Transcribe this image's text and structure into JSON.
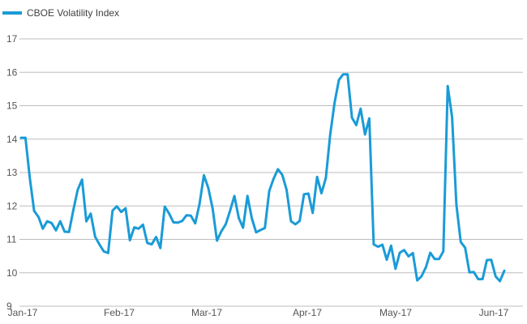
{
  "chart_data": {
    "type": "line",
    "legend": {
      "position": "top-left",
      "entries": [
        "CBOE Volatility Index"
      ]
    },
    "x_labels": [
      "Jan-17",
      "Feb-17",
      "Mar-17",
      "Apr-17",
      "May-17",
      "Jun-17"
    ],
    "ylim": [
      9,
      17
    ],
    "yticks": [
      "9",
      "10",
      "11",
      "12",
      "13",
      "14",
      "15",
      "16",
      "17"
    ],
    "grid": "horizontal",
    "colors": {
      "series": "#1a9bd7",
      "grid": "#bdbdbd",
      "text": "#555555"
    },
    "series": [
      {
        "name": "CBOE Volatility Index",
        "values": [
          14.04,
          14.04,
          12.85,
          11.85,
          11.67,
          11.32,
          11.54,
          11.49,
          11.27,
          11.54,
          11.23,
          11.22,
          11.87,
          12.48,
          12.79,
          11.54,
          11.77,
          11.08,
          10.85,
          10.64,
          10.59,
          11.86,
          11.99,
          11.82,
          11.93,
          10.97,
          11.36,
          11.32,
          11.44,
          10.89,
          10.85,
          11.07,
          10.74,
          11.98,
          11.77,
          11.51,
          11.5,
          11.55,
          11.72,
          11.71,
          11.48,
          12.06,
          12.92,
          12.54,
          11.92,
          10.96,
          11.24,
          11.45,
          11.85,
          12.3,
          11.64,
          11.35,
          12.3,
          11.63,
          11.21,
          11.28,
          11.34,
          12.45,
          12.81,
          13.1,
          12.93,
          12.48,
          11.54,
          11.45,
          11.55,
          12.35,
          12.37,
          11.79,
          12.87,
          12.38,
          12.84,
          14.12,
          15.08,
          15.77,
          15.94,
          15.94,
          14.64,
          14.42,
          14.91,
          14.14,
          14.62,
          10.85,
          10.78,
          10.84,
          10.39,
          10.81,
          10.12,
          10.6,
          10.68,
          10.49,
          10.59,
          9.77,
          9.9,
          10.17,
          10.6,
          10.41,
          10.41,
          10.64,
          15.59,
          14.66,
          12.04,
          10.92,
          10.75,
          10.01,
          10.02,
          9.81,
          9.81,
          10.38,
          10.39,
          9.89,
          9.75,
          10.06
        ]
      }
    ]
  }
}
